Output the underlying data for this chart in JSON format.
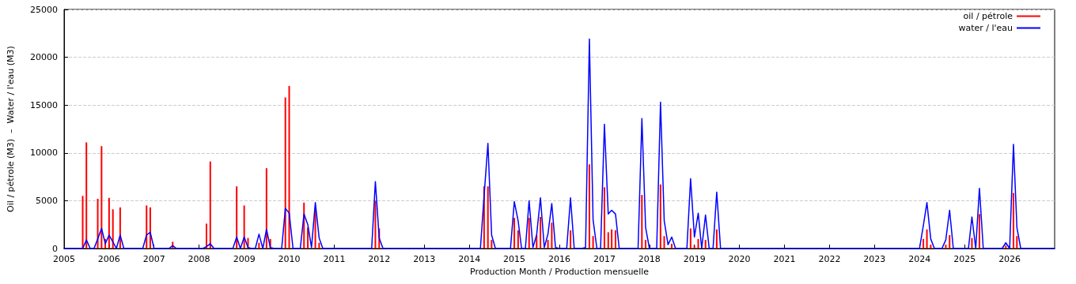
{
  "chart_data": {
    "type": "bar",
    "xlabel": "Production Month / Production mensuelle",
    "ylabel": "Oil / pétrole (M3)  –  Water / l'eau (M3)",
    "xlim": [
      "2005-01",
      "2027-01"
    ],
    "xticks": [
      "2005",
      "2006",
      "2007",
      "2008",
      "2009",
      "2010",
      "2011",
      "2012",
      "2013",
      "2014",
      "2015",
      "2016",
      "2017",
      "2018",
      "2019",
      "2020",
      "2021",
      "2022",
      "2023",
      "2024",
      "2025",
      "2026"
    ],
    "ylim": [
      0,
      25000
    ],
    "yticks": [
      0,
      5000,
      10000,
      15000,
      20000,
      25000
    ],
    "grid": "y",
    "legend": "top right",
    "marker": "none",
    "line_style": "solid",
    "series": [
      {
        "name": "oil / pétrole",
        "color": "#ff0000",
        "x": [
          "2005-06",
          "2005-07",
          "2005-10",
          "2005-11",
          "2005-12",
          "2006-01",
          "2006-02",
          "2006-04",
          "2006-11",
          "2006-12",
          "2007-06",
          "2008-03",
          "2008-04",
          "2008-11",
          "2009-01",
          "2009-02",
          "2009-05",
          "2009-07",
          "2009-08",
          "2009-12",
          "2010-01",
          "2010-05",
          "2010-06",
          "2010-08",
          "2010-09",
          "2011-12",
          "2012-01",
          "2014-05",
          "2014-06",
          "2014-07",
          "2015-01",
          "2015-02",
          "2015-05",
          "2015-07",
          "2015-08",
          "2015-10",
          "2015-11",
          "2016-04",
          "2016-09",
          "2016-10",
          "2017-01",
          "2017-02",
          "2017-03",
          "2017-04",
          "2017-11",
          "2017-12",
          "2018-04",
          "2018-05",
          "2018-07",
          "2018-12",
          "2019-01",
          "2019-02",
          "2019-04",
          "2019-07",
          "2024-02",
          "2024-03",
          "2024-04",
          "2024-08",
          "2024-09",
          "2025-03",
          "2025-05",
          "2025-12",
          "2026-02",
          "2026-03"
        ],
        "values": [
          5500,
          11100,
          5200,
          10700,
          1000,
          5300,
          4100,
          4300,
          4500,
          4300,
          700,
          2600,
          9100,
          6500,
          4500,
          1100,
          600,
          8400,
          1000,
          15800,
          17000,
          4800,
          2200,
          4100,
          600,
          5000,
          2100,
          6500,
          6500,
          900,
          3200,
          1900,
          3200,
          1400,
          3300,
          900,
          2700,
          1900,
          8800,
          1300,
          6400,
          1700,
          2000,
          1900,
          5600,
          900,
          6700,
          1300,
          500,
          2100,
          300,
          1000,
          900,
          2000,
          1000,
          2000,
          400,
          400,
          1400,
          1100,
          3600,
          300,
          5800,
          1300
        ]
      },
      {
        "name": "water / l'eau",
        "type": "line",
        "color": "#0000ff",
        "x": [
          "2005-01",
          "2005-06",
          "2005-07",
          "2005-08",
          "2005-09",
          "2005-10",
          "2005-11",
          "2005-12",
          "2006-01",
          "2006-02",
          "2006-03",
          "2006-04",
          "2006-05",
          "2006-10",
          "2006-11",
          "2006-12",
          "2007-01",
          "2007-05",
          "2007-06",
          "2007-07",
          "2008-02",
          "2008-03",
          "2008-04",
          "2008-05",
          "2008-10",
          "2008-11",
          "2008-12",
          "2009-01",
          "2009-02",
          "2009-03",
          "2009-04",
          "2009-05",
          "2009-06",
          "2009-07",
          "2009-08",
          "2009-09",
          "2009-11",
          "2009-12",
          "2010-01",
          "2010-02",
          "2010-04",
          "2010-05",
          "2010-06",
          "2010-07",
          "2010-08",
          "2010-09",
          "2010-10",
          "2011-11",
          "2011-12",
          "2012-01",
          "2012-02",
          "2014-04",
          "2014-05",
          "2014-06",
          "2014-07",
          "2014-08",
          "2014-12",
          "2015-01",
          "2015-02",
          "2015-03",
          "2015-04",
          "2015-05",
          "2015-06",
          "2015-07",
          "2015-08",
          "2015-09",
          "2015-10",
          "2015-11",
          "2015-12",
          "2016-01",
          "2016-03",
          "2016-04",
          "2016-05",
          "2016-07",
          "2016-08",
          "2016-09",
          "2016-10",
          "2016-11",
          "2016-12",
          "2017-01",
          "2017-02",
          "2017-03",
          "2017-04",
          "2017-05",
          "2017-10",
          "2017-11",
          "2017-12",
          "2018-01",
          "2018-03",
          "2018-04",
          "2018-05",
          "2018-06",
          "2018-07",
          "2018-08",
          "2018-11",
          "2018-12",
          "2019-01",
          "2019-02",
          "2019-03",
          "2019-04",
          "2019-05",
          "2019-06",
          "2019-07",
          "2019-08",
          "2024-01",
          "2024-02",
          "2024-03",
          "2024-04",
          "2024-05",
          "2024-07",
          "2024-08",
          "2024-09",
          "2024-10",
          "2025-02",
          "2025-03",
          "2025-04",
          "2025-05",
          "2025-06",
          "2025-11",
          "2025-12",
          "2026-01",
          "2026-02",
          "2026-03",
          "2026-04",
          "2027-01"
        ],
        "values": [
          0,
          0,
          900,
          0,
          0,
          1000,
          2100,
          500,
          1400,
          700,
          0,
          1400,
          0,
          0,
          1400,
          1700,
          0,
          0,
          300,
          0,
          0,
          200,
          500,
          0,
          0,
          1200,
          0,
          1200,
          100,
          0,
          0,
          1500,
          0,
          2000,
          100,
          0,
          0,
          4200,
          3700,
          0,
          0,
          3600,
          2500,
          100,
          4800,
          1100,
          0,
          0,
          7000,
          1100,
          0,
          0,
          5500,
          11000,
          1400,
          0,
          0,
          4900,
          2900,
          0,
          0,
          5000,
          100,
          1400,
          5300,
          100,
          1500,
          4700,
          100,
          0,
          0,
          5300,
          0,
          0,
          100,
          21900,
          3000,
          0,
          0,
          13000,
          3600,
          4000,
          3600,
          0,
          0,
          13600,
          2200,
          0,
          0,
          15300,
          2900,
          400,
          1200,
          0,
          0,
          7300,
          1200,
          3700,
          0,
          3500,
          0,
          0,
          5900,
          0,
          0,
          2400,
          4800,
          1000,
          0,
          0,
          900,
          4000,
          0,
          0,
          3300,
          0,
          6300,
          0,
          0,
          600,
          0,
          10900,
          2200,
          0,
          0
        ]
      }
    ]
  }
}
